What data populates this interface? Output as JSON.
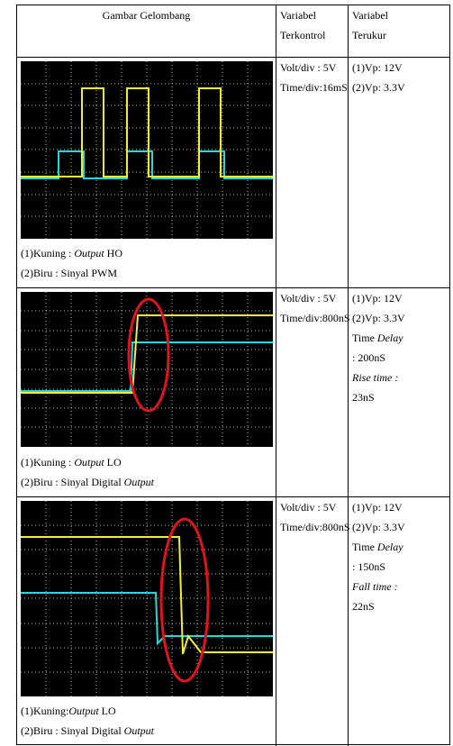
{
  "table": {
    "headers": [
      [
        "Gambar Gelombang"
      ],
      [
        "Variabel",
        "Terkontrol"
      ],
      [
        "Variabel",
        "Terukur"
      ]
    ],
    "rows": [
      {
        "legend": [
          [
            "(1)Kuning : ",
            "Output",
            " HO"
          ],
          [
            "(2)Biru : Sinyal PWM"
          ]
        ],
        "controlled": [
          "Volt/div : 5V",
          "Time/div:16mS"
        ],
        "measured": [
          "(1)Vp: 12V",
          "(2)Vp: 3.3V"
        ]
      },
      {
        "legend": [
          [
            "(1)Kuning : ",
            "Output",
            " LO"
          ],
          [
            "(2)Biru : Sinyal Digital ",
            "Output"
          ]
        ],
        "controlled": [
          "Volt/div : 5V",
          "Time/div:800nS"
        ],
        "measured": [
          "(1)Vp: 12V",
          "(2)Vp: 3.3V",
          [
            "Time ",
            "Delay"
          ],
          ": 200nS",
          "Rise time :",
          "23nS"
        ]
      },
      {
        "legend": [
          [
            "(1)Kuning:",
            "Output",
            " LO"
          ],
          [
            "(2)Biru : Sinyal Digital ",
            "Output"
          ]
        ],
        "controlled": [
          "Volt/div : 5V",
          "Time/div:800nS"
        ],
        "measured": [
          "(1)Vp: 12V",
          "(2)Vp: 3.3V",
          [
            "Time ",
            "Delay"
          ],
          ": 150nS",
          "Fall time :",
          "22nS"
        ]
      }
    ]
  }
}
